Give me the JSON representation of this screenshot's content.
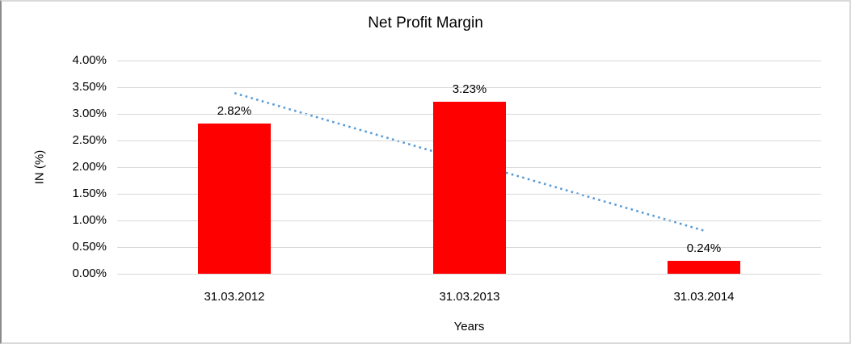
{
  "chart_data": {
    "type": "bar",
    "title": "Net Profit Margin",
    "xlabel": "Years",
    "ylabel": "IN (%)",
    "categories": [
      "31.03.2012",
      "31.03.2013",
      "31.03.2014"
    ],
    "values": [
      2.82,
      3.23,
      0.24
    ],
    "data_labels": [
      "2.82%",
      "3.23%",
      "0.24%"
    ],
    "series_name": "Net Profit Margin",
    "bar_color": "#ff0000",
    "ylim": [
      0,
      4
    ],
    "y_ticks": [
      {
        "value": 4.0,
        "label": "4.00%"
      },
      {
        "value": 3.5,
        "label": "3.50%"
      },
      {
        "value": 3.0,
        "label": "3.00%"
      },
      {
        "value": 2.5,
        "label": "2.50%"
      },
      {
        "value": 2.0,
        "label": "2.00%"
      },
      {
        "value": 1.5,
        "label": "1.50%"
      },
      {
        "value": 1.0,
        "label": "1.00%"
      },
      {
        "value": 0.5,
        "label": "0.50%"
      },
      {
        "value": 0.0,
        "label": "0.00%"
      }
    ],
    "grid": true,
    "grid_color": "#d9d9d9",
    "axis_line_color": "#d9d9d9",
    "legend": false,
    "trendline": {
      "type": "linear",
      "style": "dotted",
      "color": "#5b9bd5",
      "start_value": 3.39,
      "end_value": 0.81
    }
  },
  "frame": {
    "background": "#ffffff",
    "border_color": "#d9d9d9",
    "left_border_color": "#8c8c8c"
  }
}
